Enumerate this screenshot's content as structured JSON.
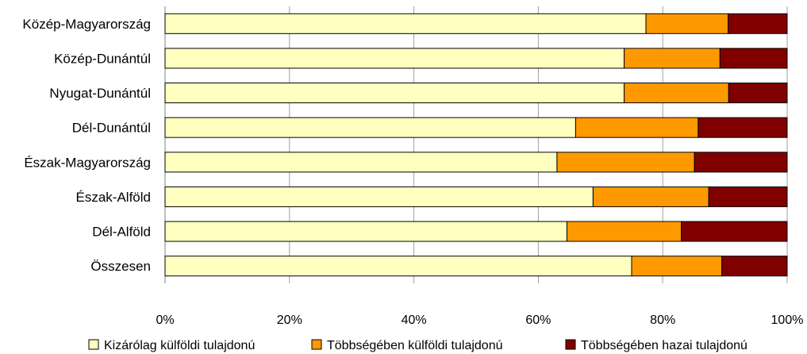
{
  "chart_data": {
    "type": "bar",
    "orientation": "horizontal",
    "stacked": true,
    "percent_stacked": true,
    "categories": [
      "Közép-Magyarország",
      "Közép-Dunántúl",
      "Nyugat-Dunántúl",
      "Dél-Dunántúl",
      "Észak-Magyarország",
      "Észak-Alföld",
      "Dél-Alföld",
      "Összesen"
    ],
    "series": [
      {
        "name": "Kizárólag külföldi tulajdonú",
        "color": "#FFFFC0",
        "values": [
          77.3,
          73.8,
          73.8,
          66.0,
          63.0,
          68.8,
          64.6,
          75.0
        ]
      },
      {
        "name": "Többségében külföldi tulajdonú",
        "color": "#FF9900",
        "values": [
          13.2,
          15.4,
          16.8,
          19.7,
          22.1,
          18.6,
          18.4,
          14.5
        ]
      },
      {
        "name": "Többségében hazai tulajdonú",
        "color": "#800000",
        "values": [
          9.5,
          10.8,
          9.4,
          14.3,
          14.9,
          12.6,
          17.0,
          10.5
        ]
      }
    ],
    "xlim": [
      0,
      100
    ],
    "x_ticks": [
      "0%",
      "20%",
      "40%",
      "60%",
      "80%",
      "100%"
    ],
    "grid": true,
    "legend_position": "bottom"
  }
}
